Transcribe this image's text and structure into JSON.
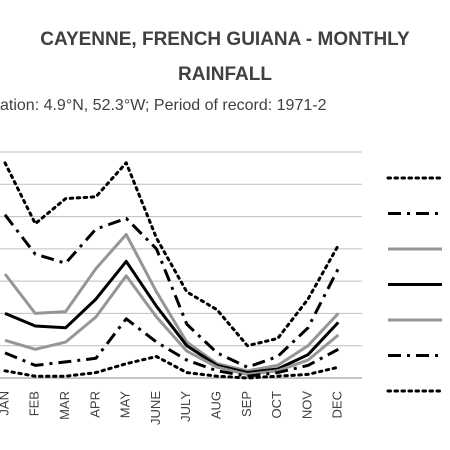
{
  "chart_data": {
    "type": "line",
    "title_lines": [
      "CAYENNE, FRENCH GUIANA - MONTHLY",
      "RAINFALL"
    ],
    "subtitle": "ation: 4.9°N, 52.3°W; Period of record: 1971-2",
    "categories": [
      "JAN",
      "FEB",
      "MAR",
      "APR",
      "MAY",
      "JUNE",
      "JULY",
      "AUG",
      "SEP",
      "OCT",
      "NOV",
      "DEC"
    ],
    "ylim": [
      0,
      6.3
    ],
    "grid": true,
    "legend": "right",
    "series": [
      {
        "style": "dotted",
        "color": "#000000",
        "values": [
          6.0,
          4.3,
          5.0,
          5.05,
          6.0,
          3.9,
          2.4,
          1.9,
          0.9,
          1.1,
          2.2,
          3.7
        ]
      },
      {
        "style": "dashdot",
        "color": "#000000",
        "values": [
          4.55,
          3.45,
          3.2,
          4.15,
          4.45,
          3.6,
          1.5,
          0.7,
          0.3,
          0.6,
          1.4,
          3.05
        ]
      },
      {
        "style": "solid",
        "color": "#969696",
        "values": [
          2.9,
          1.8,
          1.85,
          3.05,
          4.0,
          2.4,
          1.0,
          0.4,
          0.2,
          0.35,
          0.9,
          1.8
        ]
      },
      {
        "style": "solid",
        "color": "#000000",
        "values": [
          1.8,
          1.45,
          1.4,
          2.2,
          3.25,
          2.0,
          0.9,
          0.35,
          0.15,
          0.25,
          0.65,
          1.55
        ]
      },
      {
        "style": "solid",
        "color": "#969696",
        "values": [
          1.05,
          0.8,
          1.0,
          1.7,
          2.85,
          1.7,
          0.75,
          0.3,
          0.1,
          0.2,
          0.5,
          1.2
        ]
      },
      {
        "style": "dashdot",
        "color": "#000000",
        "values": [
          0.7,
          0.35,
          0.45,
          0.55,
          1.65,
          1.0,
          0.5,
          0.2,
          0.05,
          0.15,
          0.35,
          0.8
        ]
      },
      {
        "style": "dotted",
        "color": "#000000",
        "values": [
          0.2,
          0.05,
          0.05,
          0.15,
          0.4,
          0.6,
          0.15,
          0.05,
          0.0,
          0.05,
          0.1,
          0.3
        ]
      }
    ]
  }
}
